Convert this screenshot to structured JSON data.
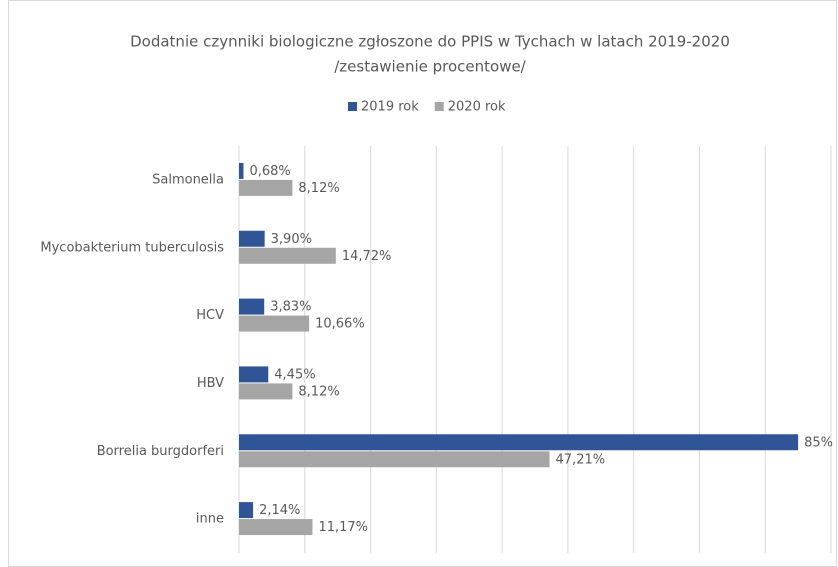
{
  "chart_data": {
    "type": "hbar",
    "title": [
      "Dodatnie czynniki biologiczne zgłoszone do PPIS w Tychach w latach 2019-2020",
      "/zestawienie procentowe/"
    ],
    "categories": [
      "Salmonella",
      "Mycobakterium tuberculosis",
      "HCV",
      "HBV",
      "Borrelia burgdorferi",
      "inne"
    ],
    "series": [
      {
        "name": "2019 rok",
        "color": "#2f5597",
        "values": [
          0.68,
          3.9,
          3.83,
          4.45,
          85,
          2.14
        ],
        "value_labels": [
          "0,68%",
          "3,90%",
          "3,83%",
          "4,45%",
          "85%",
          "2,14%"
        ]
      },
      {
        "name": "2020 rok",
        "color": "#a5a5a5",
        "values": [
          8.12,
          14.72,
          10.66,
          8.12,
          47.21,
          11.17
        ],
        "value_labels": [
          "8,12%",
          "14,72%",
          "10,66%",
          "8,12%",
          "47,21%",
          "11,17%"
        ]
      }
    ],
    "xlim": [
      0,
      90
    ],
    "xticks": [
      0,
      10,
      20,
      30,
      40,
      50,
      60,
      70,
      80,
      90
    ],
    "grid": true,
    "legend": "top"
  }
}
